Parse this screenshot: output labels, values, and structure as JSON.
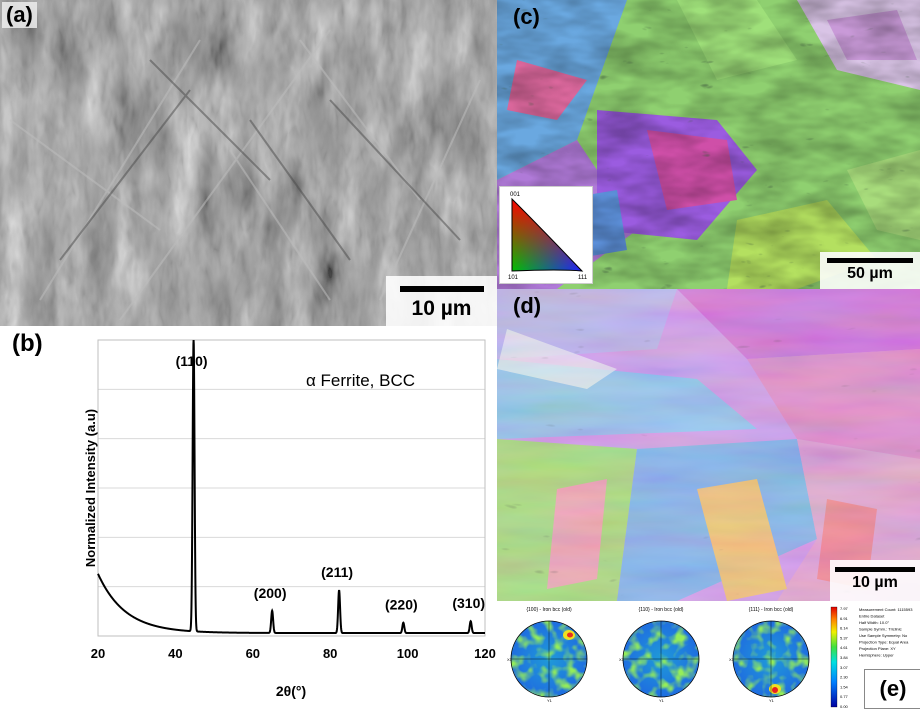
{
  "panels": {
    "a": {
      "label": "(a)",
      "scale_bar": "10 µm"
    },
    "b": {
      "label": "(b)"
    },
    "c": {
      "label": "(c)",
      "scale_bar": "50 µm",
      "ipf_legend": {
        "corner_top": "001",
        "corner_left": "101",
        "corner_right": "111"
      }
    },
    "d": {
      "label": "(d)",
      "scale_bar": "10 µm"
    },
    "e": {
      "label": "(e)",
      "pole_figure_titles": [
        "{100} - Iron bcc (old)",
        "{110} - Iron bcc (old)",
        "{111} - Iron bcc (old)"
      ],
      "axis_x": "X1",
      "axis_y": "Y1",
      "colorbar_ticks": [
        "7.97",
        "6.91",
        "6.14",
        "5.37",
        "4.61",
        "3.84",
        "3.07",
        "2.30",
        "1.54",
        "0.77",
        "0.00"
      ],
      "info_lines": [
        "Measurement Count: 1115593",
        "Entire Dataset",
        "Half Width: 10.0°",
        "Sample Symm.: Triclinic",
        "Use Sample Symmetry: No",
        "Projection Type: Equal Area",
        "Projection Plane: XY",
        "Hemisphere: Upper"
      ]
    }
  },
  "chart_data": {
    "type": "line",
    "title": "",
    "annotation": "α Ferrite, BCC",
    "xlabel": "2θ(°)",
    "ylabel": "Normalized Intensity (a.u)",
    "xlim": [
      20,
      120
    ],
    "ylim": [
      0,
      1
    ],
    "x_ticks": [
      20,
      40,
      60,
      80,
      100,
      120
    ],
    "grid": true,
    "peaks": [
      {
        "label": "(110)",
        "x": 44.7,
        "y": 1.0
      },
      {
        "label": "(200)",
        "x": 65.0,
        "y": 0.085
      },
      {
        "label": "(211)",
        "x": 82.3,
        "y": 0.155
      },
      {
        "label": "(220)",
        "x": 98.9,
        "y": 0.045
      },
      {
        "label": "(310)",
        "x": 116.3,
        "y": 0.05
      }
    ],
    "background": {
      "start_y": 0.21,
      "decay": 7.0,
      "floor": 0.01
    },
    "color": "#000000"
  }
}
